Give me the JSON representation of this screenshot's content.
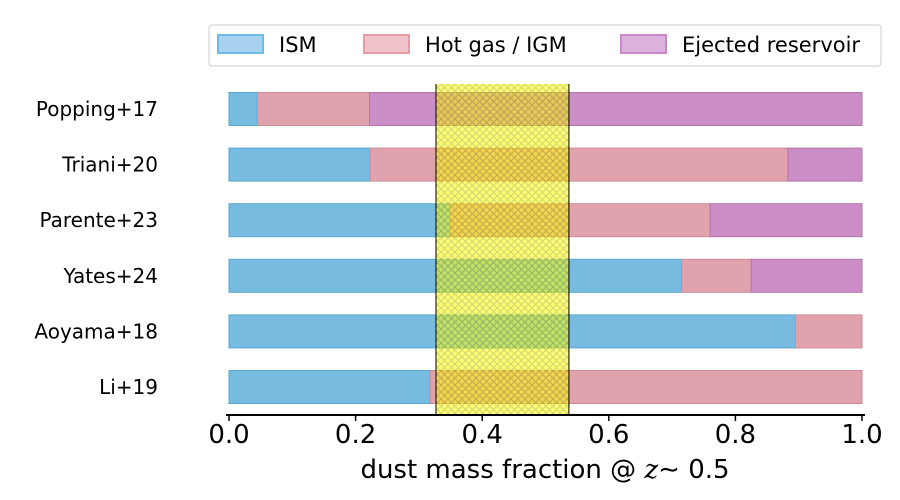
{
  "chart_data": {
    "type": "bar",
    "orientation": "horizontal",
    "stacked": true,
    "categories": [
      "Popping+17",
      "Triani+20",
      "Parente+23",
      "Yates+24",
      "Aoyama+18",
      "Li+19"
    ],
    "series": [
      {
        "name": "ISM",
        "color": "#77bce0",
        "edge": "#5aa9d2",
        "values": [
          0.045,
          0.223,
          0.35,
          0.715,
          0.895,
          0.318
        ]
      },
      {
        "name": "Hot gas / IGM",
        "color": "#e0a3ae",
        "edge": "#cf8a98",
        "values": [
          0.177,
          0.66,
          0.41,
          0.11,
          0.105,
          0.682
        ]
      },
      {
        "name": "Ejected reservoir",
        "color": "#cb8ec6",
        "edge": "#b275ad",
        "values": [
          0.778,
          0.117,
          0.24,
          0.175,
          0.0,
          0.0
        ]
      }
    ],
    "highlight_band": {
      "x_min": 0.327,
      "x_max": 0.537,
      "color": "#ffff00",
      "hatch": "#c9c900"
    },
    "xlim": [
      0.0,
      1.0
    ],
    "xticks": [
      "0.0",
      "0.2",
      "0.4",
      "0.6",
      "0.8",
      "1.0"
    ],
    "xlabel_prefix": "dust mass fraction @ ",
    "xlabel_var": "z",
    "xlabel_suffix": "∼ 0.5",
    "legend": {
      "position": "top",
      "entries": [
        "ISM",
        "Hot gas / IGM",
        "Ejected reservoir"
      ]
    }
  }
}
